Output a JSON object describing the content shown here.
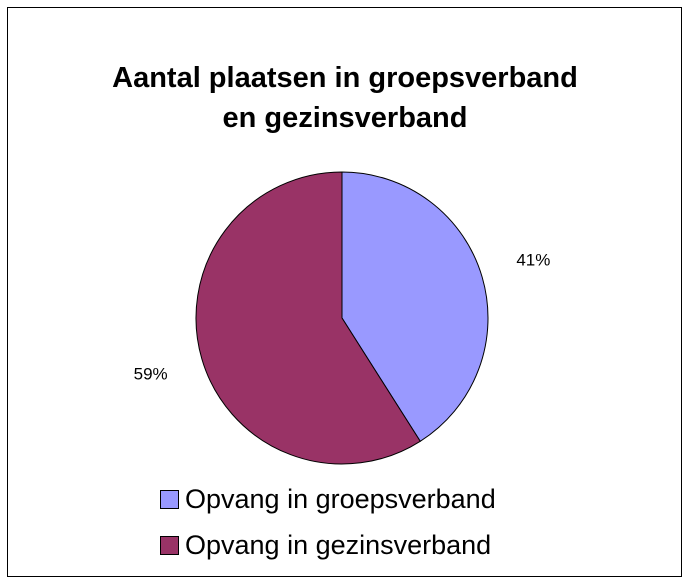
{
  "chart_data": {
    "type": "pie",
    "title": [
      "Aantal plaatsen in groepsverband",
      "en gezinsverband"
    ],
    "slices": [
      {
        "label": "Opvang in groepsverband",
        "value": 41,
        "value_label": "41%",
        "color": "#9999FF"
      },
      {
        "label": "Opvang in gezinsverband",
        "value": 59,
        "value_label": "59%",
        "color": "#993366"
      }
    ],
    "legend_position": "bottom"
  }
}
